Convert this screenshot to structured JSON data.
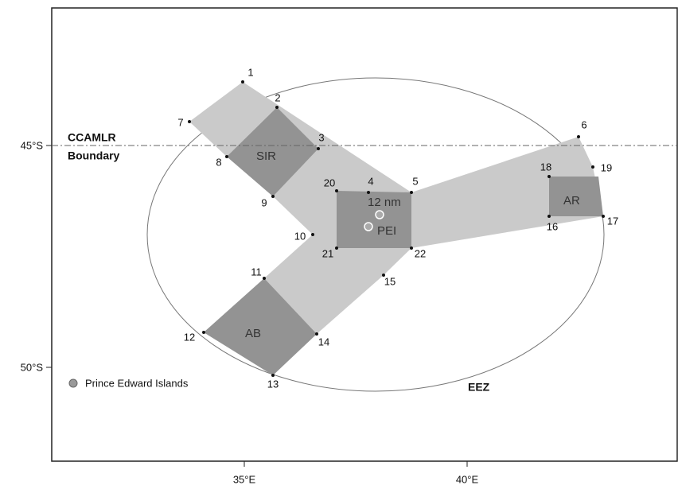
{
  "map": {
    "lat_labels": [
      "45°S",
      "50°S"
    ],
    "lon_labels": [
      "35°E",
      "40°E"
    ],
    "boundary_label": [
      "CCAMLR",
      "Boundary"
    ],
    "eez_label": "EEZ",
    "legend": "Prince Edward Islands",
    "regions": [
      "SIR",
      "AB",
      "AR",
      "PEI",
      "12 nm"
    ],
    "point_labels": [
      "1",
      "2",
      "3",
      "4",
      "5",
      "6",
      "7",
      "8",
      "9",
      "10",
      "11",
      "12",
      "13",
      "14",
      "15",
      "16",
      "17",
      "18",
      "19",
      "20",
      "21",
      "22"
    ]
  }
}
